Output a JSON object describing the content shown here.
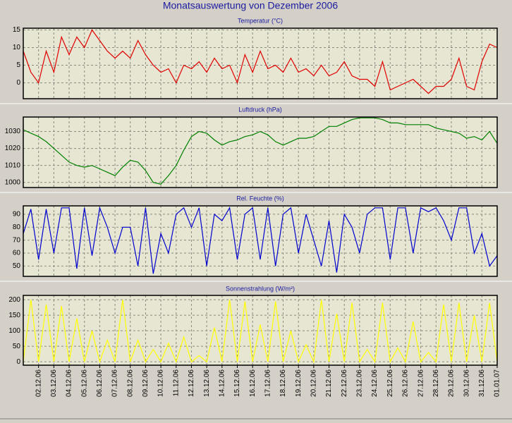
{
  "title": "Monatsauswertung von Dezember 2006",
  "chart_data": [
    {
      "type": "line",
      "title": "Temperatur (°C)",
      "color": "#e00000",
      "ylim": [
        -4.5,
        15.5
      ],
      "yticks": [
        0,
        5,
        10,
        15
      ],
      "grid": true,
      "values": [
        9,
        3,
        0,
        9,
        3,
        13,
        8,
        13,
        10,
        15,
        12,
        9,
        7,
        9,
        7,
        12,
        8,
        5,
        3,
        4,
        0,
        5,
        4,
        6,
        3,
        7,
        4,
        5,
        0,
        8,
        3,
        9,
        4,
        5,
        3,
        7,
        3,
        4,
        2,
        5,
        2,
        3,
        6,
        2,
        1,
        1,
        -1,
        6,
        -2,
        -1,
        0,
        1,
        -1,
        -3,
        -1,
        -1,
        1,
        7,
        -1,
        -2,
        6,
        11,
        10
      ]
    },
    {
      "type": "line",
      "title": "Luftdruck (hPa)",
      "color": "#008000",
      "ylim": [
        997,
        1038.5
      ],
      "yticks": [
        1000,
        1010,
        1020,
        1030
      ],
      "grid": true,
      "values": [
        1031,
        1029,
        1027,
        1024,
        1020,
        1016,
        1012,
        1010,
        1009,
        1010,
        1008,
        1006,
        1004,
        1009,
        1013,
        1012,
        1007,
        1000,
        999,
        1004,
        1010,
        1019,
        1027,
        1030,
        1029,
        1025,
        1022,
        1024,
        1025,
        1027,
        1028,
        1030,
        1028,
        1024,
        1022,
        1024,
        1026,
        1026,
        1027,
        1030,
        1033,
        1033,
        1035,
        1037,
        1038,
        1038,
        1038,
        1037,
        1035,
        1035,
        1034,
        1034,
        1034,
        1034,
        1032,
        1031,
        1030,
        1029,
        1026,
        1027,
        1025,
        1030,
        1023
      ]
    },
    {
      "type": "line",
      "title": "Rel. Feuchte (%)",
      "color": "#0000d0",
      "ylim": [
        42,
        96.5
      ],
      "yticks": [
        50,
        60,
        70,
        80,
        90
      ],
      "grid": true,
      "values": [
        75,
        94,
        55,
        94,
        60,
        95,
        95,
        48,
        95,
        58,
        95,
        80,
        60,
        80,
        80,
        50,
        95,
        44,
        75,
        60,
        90,
        95,
        80,
        95,
        50,
        90,
        85,
        95,
        55,
        90,
        95,
        55,
        95,
        50,
        90,
        95,
        60,
        90,
        70,
        50,
        85,
        45,
        90,
        80,
        60,
        90,
        95,
        95,
        55,
        95,
        95,
        60,
        95,
        92,
        95,
        85,
        70,
        95,
        95,
        60,
        75,
        50,
        58
      ]
    },
    {
      "type": "line",
      "title": "Sonnenstrahlung (W/m²)",
      "color": "#ffff00",
      "ylim": [
        -11,
        214
      ],
      "yticks": [
        0,
        50,
        100,
        150,
        200
      ],
      "grid": true,
      "values": [
        0,
        200,
        0,
        185,
        0,
        180,
        0,
        140,
        0,
        100,
        0,
        70,
        0,
        200,
        0,
        70,
        0,
        40,
        0,
        60,
        0,
        80,
        0,
        20,
        0,
        110,
        0,
        200,
        0,
        195,
        0,
        120,
        0,
        195,
        0,
        100,
        0,
        55,
        0,
        200,
        0,
        155,
        0,
        190,
        0,
        40,
        0,
        190,
        0,
        45,
        0,
        130,
        0,
        30,
        0,
        185,
        0,
        190,
        0,
        150,
        0,
        190,
        0
      ],
      "categories": [
        null,
        null,
        "02.12.06",
        null,
        "03.12.06",
        null,
        "04.12.06",
        null,
        "05.12.06",
        null,
        "06.12.06",
        null,
        "07.12.06",
        null,
        "08.12.06",
        null,
        "09.12.06",
        null,
        "10.12.06",
        null,
        "11.12.06",
        null,
        "12.12.06",
        null,
        "13.12.06",
        null,
        "14.12.06",
        null,
        "15.12.06",
        null,
        "16.12.06",
        null,
        "17.12.06",
        null,
        "18.12.06",
        null,
        "19.12.06",
        null,
        "20.12.06",
        null,
        "21.12.06",
        null,
        "22.12.06",
        null,
        "23.12.06",
        null,
        "24.12.06",
        null,
        "25.12.06",
        null,
        "26.12.06",
        null,
        "27.12.06",
        null,
        "28.12.06",
        null,
        "29.12.06",
        null,
        "30.12.06",
        null,
        "31.12.06",
        null,
        "01.01.07"
      ]
    }
  ]
}
